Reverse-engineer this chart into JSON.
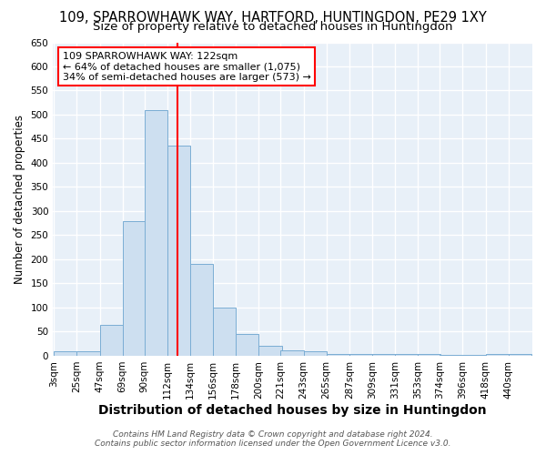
{
  "title": "109, SPARROWHAWK WAY, HARTFORD, HUNTINGDON, PE29 1XY",
  "subtitle": "Size of property relative to detached houses in Huntingdon",
  "xlabel": "Distribution of detached houses by size in Huntingdon",
  "ylabel": "Number of detached properties",
  "footer1": "Contains HM Land Registry data © Crown copyright and database right 2024.",
  "footer2": "Contains public sector information licensed under the Open Government Licence v3.0.",
  "bins": [
    3,
    25,
    47,
    69,
    90,
    112,
    134,
    156,
    178,
    200,
    221,
    243,
    265,
    287,
    309,
    331,
    353,
    374,
    396,
    418,
    440
  ],
  "values": [
    10,
    10,
    65,
    280,
    510,
    435,
    190,
    100,
    45,
    20,
    12,
    10,
    3,
    3,
    3,
    3,
    3,
    2,
    2,
    3,
    3
  ],
  "bar_color": "#cddff0",
  "bar_edge_color": "#7aadd4",
  "red_line_x": 122,
  "annotation_line1": "109 SPARROWHAWK WAY: 122sqm",
  "annotation_line2": "← 64% of detached houses are smaller (1,075)",
  "annotation_line3": "34% of semi-detached houses are larger (573) →",
  "ylim": [
    0,
    650
  ],
  "yticks": [
    0,
    50,
    100,
    150,
    200,
    250,
    300,
    350,
    400,
    450,
    500,
    550,
    600,
    650
  ],
  "background_color": "#ffffff",
  "plot_bg_color": "#e8f0f8",
  "grid_color": "#ffffff",
  "title_fontsize": 10.5,
  "subtitle_fontsize": 9.5,
  "xlabel_fontsize": 10,
  "ylabel_fontsize": 8.5,
  "tick_fontsize": 7.5,
  "annotation_fontsize": 8,
  "footer_fontsize": 6.5
}
